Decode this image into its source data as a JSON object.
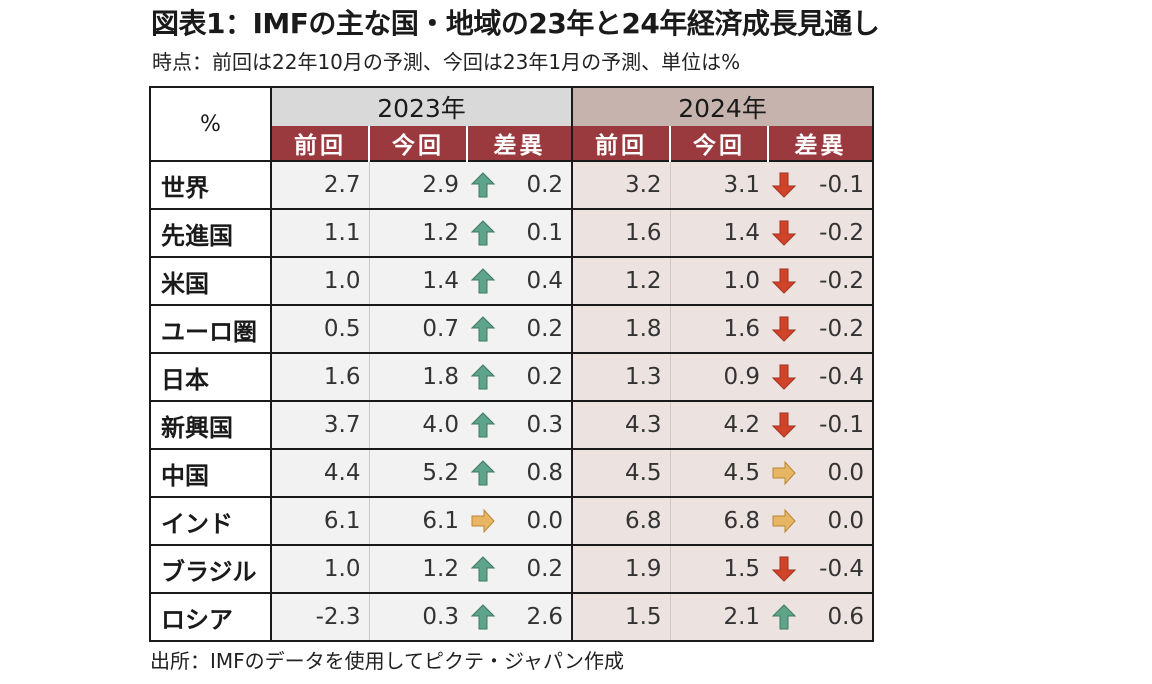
{
  "title": "図表1：IMFの主な国・地域の23年と24年経済成長見通し",
  "subtitle": "時点：前回は22年10月の予測、今回は23年1月の予測、単位は%",
  "source": "出所：IMFのデータを使用してピクテ・ジャパン作成",
  "chart_data": {
    "type": "table",
    "unit_label": "%",
    "years": [
      "2023年",
      "2024年"
    ],
    "subheaders": [
      "前回",
      "今回",
      "差異"
    ],
    "rows": [
      {
        "label": "世界",
        "y2023": {
          "prev": "2.7",
          "curr": "2.9",
          "diff": "0.2",
          "dir": "up"
        },
        "y2024": {
          "prev": "3.2",
          "curr": "3.1",
          "diff": "-0.1",
          "dir": "down"
        }
      },
      {
        "label": "先進国",
        "y2023": {
          "prev": "1.1",
          "curr": "1.2",
          "diff": "0.1",
          "dir": "up"
        },
        "y2024": {
          "prev": "1.6",
          "curr": "1.4",
          "diff": "-0.2",
          "dir": "down"
        }
      },
      {
        "label": "米国",
        "y2023": {
          "prev": "1.0",
          "curr": "1.4",
          "diff": "0.4",
          "dir": "up"
        },
        "y2024": {
          "prev": "1.2",
          "curr": "1.0",
          "diff": "-0.2",
          "dir": "down"
        }
      },
      {
        "label": "ユーロ圏",
        "y2023": {
          "prev": "0.5",
          "curr": "0.7",
          "diff": "0.2",
          "dir": "up"
        },
        "y2024": {
          "prev": "1.8",
          "curr": "1.6",
          "diff": "-0.2",
          "dir": "down"
        }
      },
      {
        "label": "日本",
        "y2023": {
          "prev": "1.6",
          "curr": "1.8",
          "diff": "0.2",
          "dir": "up"
        },
        "y2024": {
          "prev": "1.3",
          "curr": "0.9",
          "diff": "-0.4",
          "dir": "down"
        }
      },
      {
        "label": "新興国",
        "y2023": {
          "prev": "3.7",
          "curr": "4.0",
          "diff": "0.3",
          "dir": "up"
        },
        "y2024": {
          "prev": "4.3",
          "curr": "4.2",
          "diff": "-0.1",
          "dir": "down"
        }
      },
      {
        "label": "中国",
        "y2023": {
          "prev": "4.4",
          "curr": "5.2",
          "diff": "0.8",
          "dir": "up"
        },
        "y2024": {
          "prev": "4.5",
          "curr": "4.5",
          "diff": "0.0",
          "dir": "flat"
        }
      },
      {
        "label": "インド",
        "y2023": {
          "prev": "6.1",
          "curr": "6.1",
          "diff": "0.0",
          "dir": "flat"
        },
        "y2024": {
          "prev": "6.8",
          "curr": "6.8",
          "diff": "0.0",
          "dir": "flat"
        }
      },
      {
        "label": "ブラジル",
        "y2023": {
          "prev": "1.0",
          "curr": "1.2",
          "diff": "0.2",
          "dir": "up"
        },
        "y2024": {
          "prev": "1.9",
          "curr": "1.5",
          "diff": "-0.4",
          "dir": "down"
        }
      },
      {
        "label": "ロシア",
        "y2023": {
          "prev": "-2.3",
          "curr": "0.3",
          "diff": "2.6",
          "dir": "up"
        },
        "y2024": {
          "prev": "1.5",
          "curr": "2.1",
          "diff": "0.6",
          "dir": "up"
        }
      }
    ]
  },
  "icons": {
    "up": "arrow-up-icon",
    "down": "arrow-down-icon",
    "flat": "arrow-right-icon"
  },
  "colors": {
    "header_red": "#9b3a3e",
    "year2023_bg": "#d9d9d9",
    "year2024_bg": "#c6b3ad",
    "arrow_up": "#5fa48a",
    "arrow_down": "#d2442a",
    "arrow_flat": "#e8b563"
  }
}
